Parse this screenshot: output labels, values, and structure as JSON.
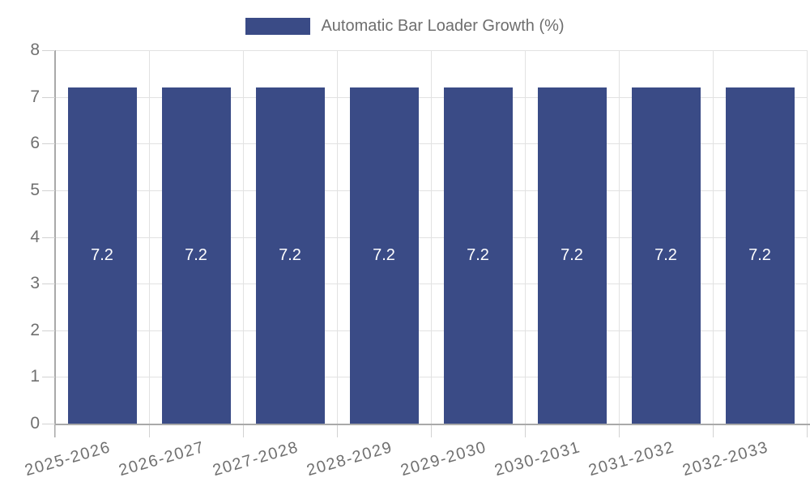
{
  "chart_data": {
    "type": "bar",
    "legend_label": "Automatic Bar Loader Growth (%)",
    "categories": [
      "2025-2026",
      "2026-2027",
      "2027-2028",
      "2028-2029",
      "2029-2030",
      "2030-2031",
      "2031-2032",
      "2032-2033"
    ],
    "series": [
      {
        "name": "Automatic Bar Loader Growth (%)",
        "values": [
          7.2,
          7.2,
          7.2,
          7.2,
          7.2,
          7.2,
          7.2,
          7.2
        ]
      }
    ],
    "value_labels": [
      "7.2",
      "7.2",
      "7.2",
      "7.2",
      "7.2",
      "7.2",
      "7.2",
      "7.2"
    ],
    "xlabel": "",
    "ylabel": "",
    "ylim": [
      0,
      8
    ],
    "yticks": [
      0,
      1,
      2,
      3,
      4,
      5,
      6,
      7,
      8
    ],
    "grid": true,
    "legend_position": "top-center",
    "x_tick_rotation_deg": -16,
    "colors": {
      "bar": "#3a4b86",
      "grid": "#e2e2e2",
      "axis": "#a9a9a9",
      "tick": "#d2d2d2",
      "tick_text": "#707070",
      "legend_text": "#6e6e6e",
      "value_label_text": "#ffffff",
      "background": "#ffffff"
    }
  }
}
